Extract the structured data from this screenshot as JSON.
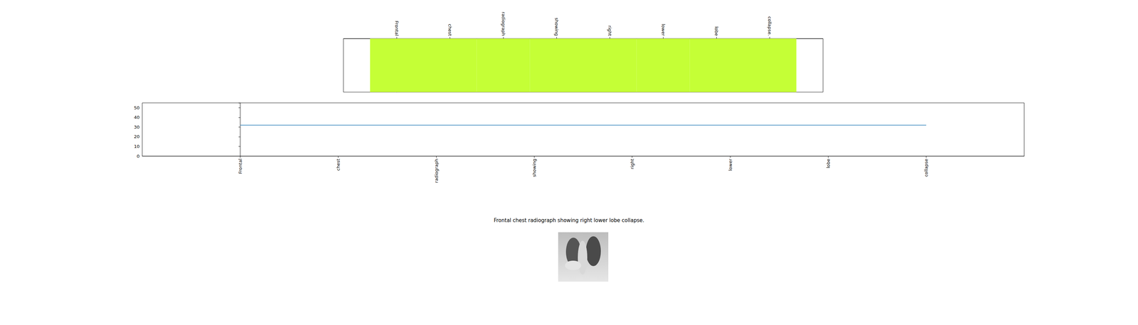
{
  "chart_data": [
    {
      "type": "heatmap",
      "x": [
        0,
        1,
        2,
        3,
        4,
        5,
        6,
        7
      ],
      "values": [
        1,
        1,
        1,
        1,
        1,
        1,
        1,
        1
      ],
      "colors": [
        "#c5ff36",
        "#c5ff36",
        "#c5ff36",
        "#c5ff36",
        "#c5ff36",
        "#c5ff36",
        "#c5ff36",
        "#c5ff36"
      ],
      "xlim": [
        -1,
        8
      ],
      "xticks": [
        {
          "value": 0,
          "label": "Frontal"
        },
        {
          "value": 1,
          "label": "chest"
        },
        {
          "value": 2,
          "label": "radiograph"
        },
        {
          "value": 3,
          "label": "showing"
        },
        {
          "value": 4,
          "label": "right"
        },
        {
          "value": 5,
          "label": "lower"
        },
        {
          "value": 6,
          "label": "lobe"
        },
        {
          "value": 7,
          "label": "collapse."
        }
      ],
      "tick_labels": "x"
    },
    {
      "type": "line",
      "x": [
        0,
        1,
        2,
        3,
        4,
        5,
        6,
        7
      ],
      "values": [
        32,
        32,
        32,
        32,
        32,
        32,
        32,
        32
      ],
      "color": "#1f77b4",
      "xlim": [
        -1,
        8
      ],
      "xticks": [
        {
          "value": 0,
          "label": "Frontal"
        },
        {
          "value": 1,
          "label": "chest"
        },
        {
          "value": 2,
          "label": "radiograph"
        },
        {
          "value": 3,
          "label": "showing"
        },
        {
          "value": 4,
          "label": "right"
        },
        {
          "value": 5,
          "label": "lower"
        },
        {
          "value": 6,
          "label": "lobe"
        },
        {
          "value": 7,
          "label": "collapse"
        }
      ],
      "ylim": [
        0,
        55
      ],
      "yticks": [
        0,
        10,
        20,
        30,
        40,
        50
      ]
    }
  ],
  "caption": "Frontal chest radiograph showing right lower lobe collapse."
}
